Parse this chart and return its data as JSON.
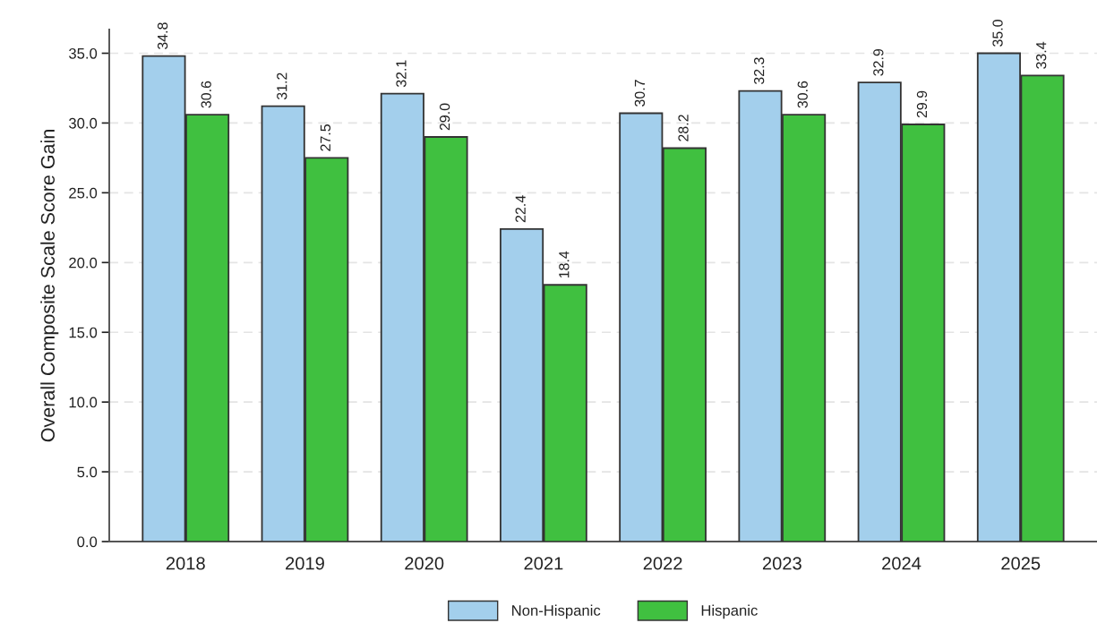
{
  "chart_data": {
    "type": "bar",
    "ylabel": "Overall Composite Scale Score Gain",
    "categories": [
      "2018",
      "2019",
      "2020",
      "2021",
      "2022",
      "2023",
      "2024",
      "2025"
    ],
    "series": [
      {
        "name": "Non-Hispanic",
        "color": "#a3cfec",
        "values": [
          34.8,
          31.2,
          32.1,
          22.4,
          30.7,
          32.3,
          32.9,
          35.0
        ],
        "value_labels": [
          "34.8",
          "31.2",
          "32.1",
          "22.4",
          "30.7",
          "32.3",
          "32.9",
          "35.0"
        ]
      },
      {
        "name": "Hispanic",
        "color": "#40c040",
        "values": [
          30.6,
          27.5,
          29.0,
          18.4,
          28.2,
          30.6,
          29.9,
          33.4
        ],
        "value_labels": [
          "30.6",
          "27.5",
          "29.0",
          "18.4",
          "28.2",
          "30.6",
          "29.9",
          "33.4"
        ]
      }
    ],
    "ylim": [
      0,
      36.7
    ],
    "yticks": [
      {
        "value": 0,
        "label": "0.0"
      },
      {
        "value": 5,
        "label": "5.0"
      },
      {
        "value": 10,
        "label": "10.0"
      },
      {
        "value": 15,
        "label": "15.0"
      },
      {
        "value": 20,
        "label": "20.0"
      },
      {
        "value": 25,
        "label": "25.0"
      },
      {
        "value": 30,
        "label": "30.0"
      },
      {
        "value": 35,
        "label": "35.0"
      }
    ],
    "grid": "y",
    "legend": "bottom"
  }
}
